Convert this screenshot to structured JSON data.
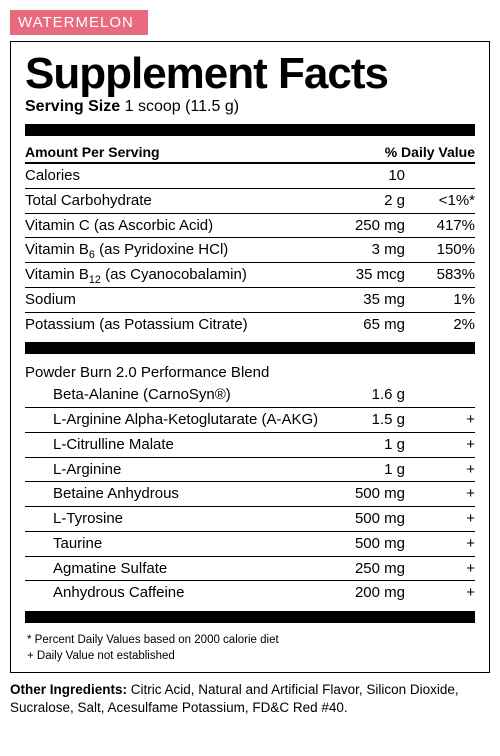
{
  "flavor": {
    "label": "WATERMELON",
    "bg_color": "#e76a7f",
    "text_color": "#ffffff"
  },
  "panel": {
    "title": "Supplement Facts",
    "serving_label": "Serving Size",
    "serving_value": "1 scoop (11.5 g)",
    "header_left": "Amount Per Serving",
    "header_right": "% Daily Value",
    "nutrients": [
      {
        "name": "Calories",
        "amount": "10",
        "dv": ""
      },
      {
        "name": "Total Carbohydrate",
        "amount": "2 g",
        "dv": "<1%*"
      },
      {
        "name": "Vitamin C (as Ascorbic Acid)",
        "amount": "250 mg",
        "dv": "417%"
      },
      {
        "name_html": "Vitamin B<sub>6</sub> (as Pyridoxine HCl)",
        "amount": "3 mg",
        "dv": "150%"
      },
      {
        "name_html": "Vitamin B<sub>12</sub> (as Cyanocobalamin)",
        "amount": "35 mcg",
        "dv": "583%"
      },
      {
        "name": "Sodium",
        "amount": "35 mg",
        "dv": "1%"
      },
      {
        "name": "Potassium (as Potassium Citrate)",
        "amount": "65 mg",
        "dv": "2%"
      }
    ],
    "blend_title": "Powder Burn 2.0 Performance Blend",
    "blend": [
      {
        "name": "Beta-Alanine (CarnoSyn®)",
        "amount": "1.6 g",
        "dv": ""
      },
      {
        "name": "L-Arginine Alpha-Ketoglutarate (A-AKG)",
        "amount": "1.5 g",
        "dv": "+"
      },
      {
        "name": "L-Citrulline Malate",
        "amount": "1 g",
        "dv": "+"
      },
      {
        "name": "L-Arginine",
        "amount": "1 g",
        "dv": "+"
      },
      {
        "name": "Betaine Anhydrous",
        "amount": "500 mg",
        "dv": "+"
      },
      {
        "name": "L-Tyrosine",
        "amount": "500 mg",
        "dv": "+"
      },
      {
        "name": "Taurine",
        "amount": "500 mg",
        "dv": "+"
      },
      {
        "name": "Agmatine Sulfate",
        "amount": "250 mg",
        "dv": "+"
      },
      {
        "name": "Anhydrous Caffeine",
        "amount": "200 mg",
        "dv": "+"
      }
    ],
    "footnote1": "* Percent Daily Values based on 2000 calorie diet",
    "footnote2": "+ Daily Value not established"
  },
  "other": {
    "label": "Other Ingredients:",
    "text": " Citric Acid, Natural and Artificial Flavor, Silicon Dioxide, Sucralose, Salt, Acesulfame Potassium, FD&C Red #40."
  },
  "colors": {
    "border": "#000000",
    "bg": "#ffffff"
  }
}
